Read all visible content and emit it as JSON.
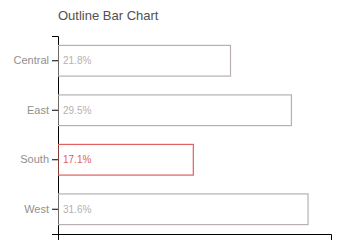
{
  "chart_data": {
    "type": "bar",
    "orientation": "horizontal",
    "title": "Outline Bar Chart",
    "categories": [
      "Central",
      "East",
      "South",
      "West"
    ],
    "values": [
      21.8,
      29.5,
      17.1,
      31.6
    ],
    "value_labels": [
      "21.8%",
      "29.5%",
      "17.1%",
      "31.6%"
    ],
    "data_labels": true,
    "colors": [
      "#b8b0b0",
      "#b8b0b0",
      "#e06060",
      "#b8b0b0"
    ],
    "xlim": [
      0,
      34.5
    ],
    "grid": false,
    "tick_labels": "y"
  }
}
